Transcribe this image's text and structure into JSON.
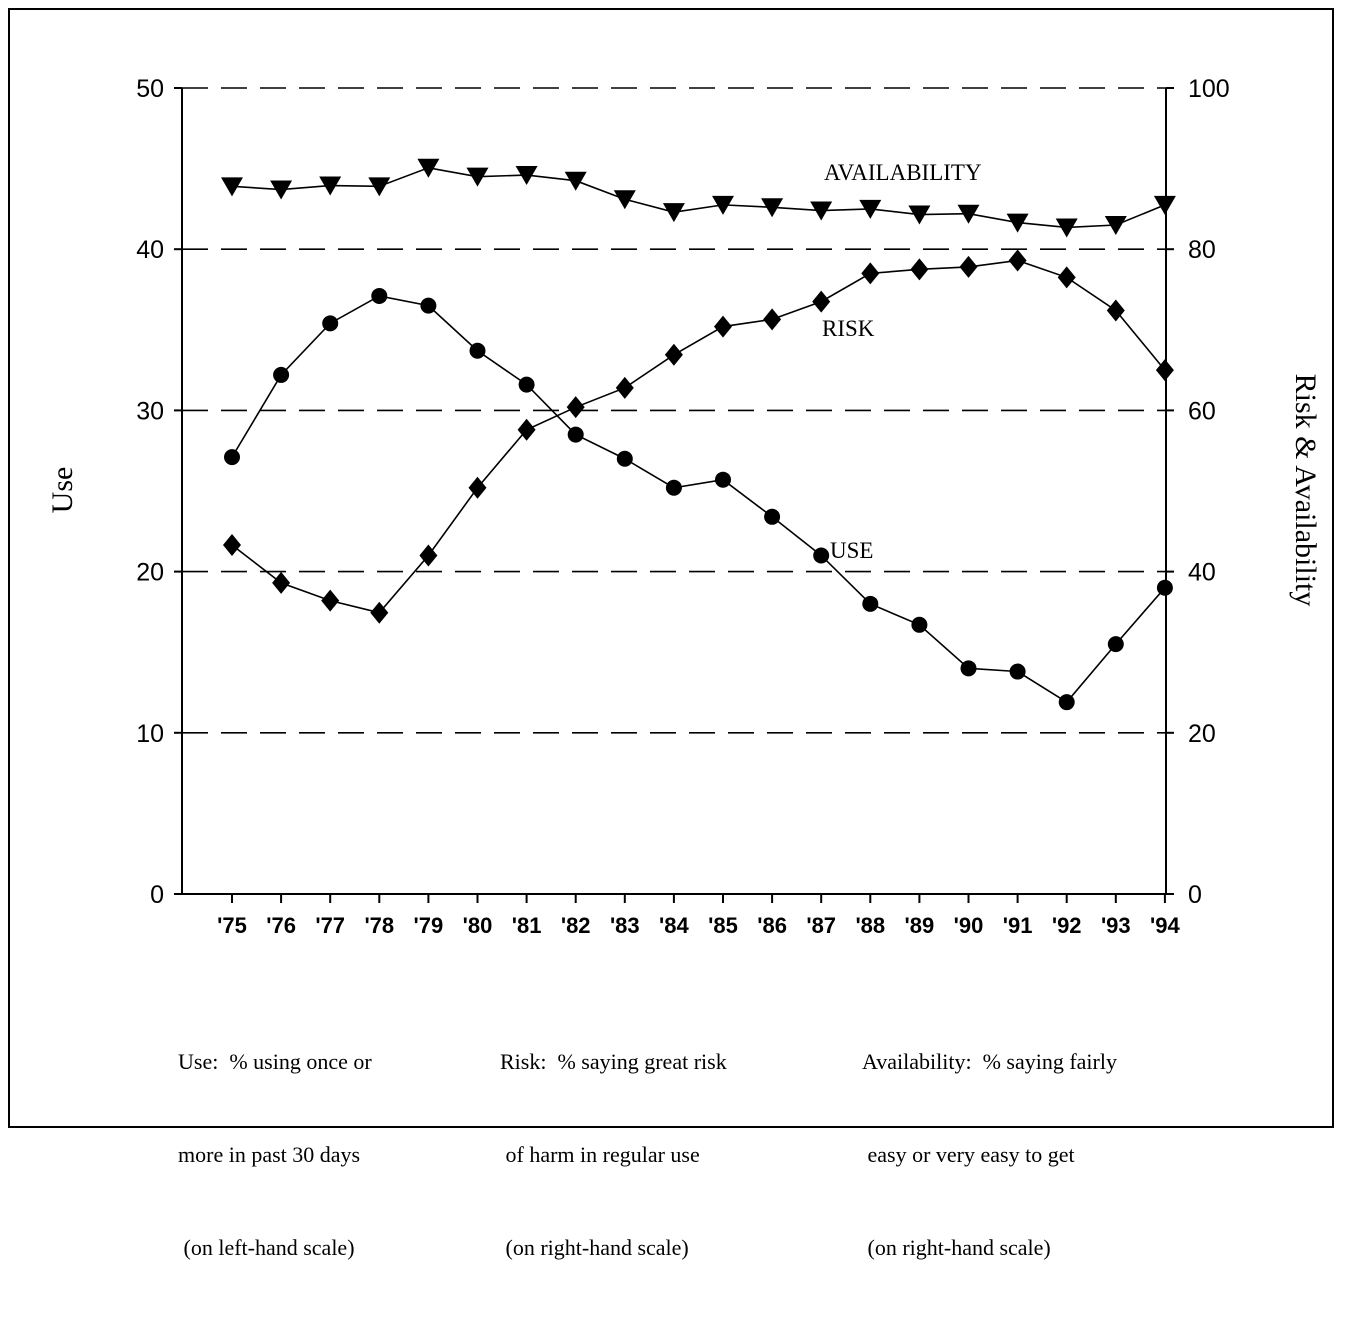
{
  "chart_data": {
    "type": "line",
    "categories": [
      "'75",
      "'76",
      "'77",
      "'78",
      "'79",
      "'80",
      "'81",
      "'82",
      "'83",
      "'84",
      "'85",
      "'86",
      "'87",
      "'88",
      "'89",
      "'90",
      "'91",
      "'92",
      "'93",
      "'94"
    ],
    "left_axis": {
      "label": "Use",
      "ylim": [
        0,
        50
      ],
      "ticks": [
        "0",
        "10",
        "20",
        "30",
        "40",
        "50"
      ]
    },
    "right_axis": {
      "label": "Risk & Availability",
      "ylim": [
        0,
        100
      ],
      "ticks": [
        "0",
        "20",
        "40",
        "60",
        "80",
        "100"
      ]
    },
    "grid": "dashed horizontal",
    "series": [
      {
        "name": "USE",
        "axis": "left",
        "marker": "circle",
        "values": [
          27.1,
          32.2,
          35.4,
          37.1,
          36.5,
          33.7,
          31.6,
          28.5,
          27.0,
          25.2,
          25.7,
          23.4,
          21.0,
          18.0,
          16.7,
          14.0,
          13.8,
          11.9,
          15.5,
          19.0
        ]
      },
      {
        "name": "RISK",
        "axis": "right",
        "marker": "diamond",
        "values": [
          43.3,
          38.6,
          36.4,
          34.9,
          42.0,
          50.4,
          57.6,
          60.4,
          62.8,
          66.9,
          70.4,
          71.3,
          73.5,
          77.0,
          77.5,
          77.8,
          78.6,
          76.5,
          72.4,
          65.0
        ]
      },
      {
        "name": "AVAILABILITY",
        "axis": "right",
        "marker": "triangle-down",
        "values": [
          87.8,
          87.4,
          87.9,
          87.8,
          90.1,
          89.0,
          89.2,
          88.5,
          86.2,
          84.6,
          85.5,
          85.2,
          84.8,
          85.0,
          84.3,
          84.4,
          83.3,
          82.7,
          83.0,
          85.5
        ]
      }
    ],
    "annotations": [
      {
        "text": "AVAILABILITY",
        "series": "AVAILABILITY"
      },
      {
        "text": "RISK",
        "series": "RISK"
      },
      {
        "text": "USE",
        "series": "USE"
      }
    ]
  },
  "notes": [
    {
      "lines": [
        "Use:  % using once or",
        "more in past 30 days",
        " (on left-hand scale)"
      ]
    },
    {
      "lines": [
        "Risk:  % saying great risk",
        " of harm in regular use",
        " (on right-hand scale)"
      ]
    },
    {
      "lines": [
        "Availability:  % saying fairly",
        " easy or very easy to get",
        " (on right-hand scale)"
      ]
    }
  ]
}
